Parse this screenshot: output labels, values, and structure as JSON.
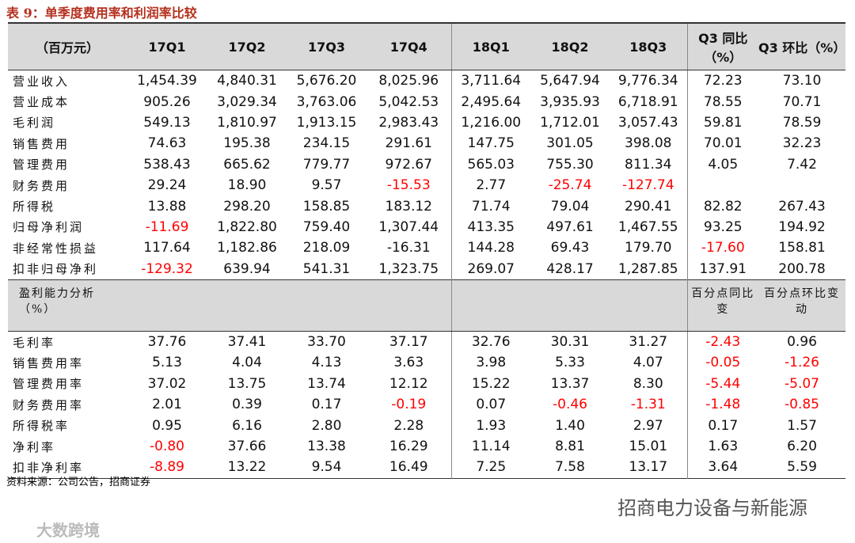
{
  "title": "表 9：单季度费用率和利润率比较",
  "table": {
    "header": [
      "（百万元）",
      "17Q1",
      "17Q2",
      "17Q3",
      "17Q4",
      "18Q1",
      "18Q2",
      "18Q3",
      "Q3 同比（%）",
      "Q3 环比（%）"
    ],
    "rows": [
      {
        "label": "营业收入",
        "cells": [
          "1,454.39",
          "4,840.31",
          "5,676.20",
          "8,025.96",
          "3,711.64",
          "5,647.94",
          "9,776.34",
          "72.23",
          "73.10"
        ]
      },
      {
        "label": "营业成本",
        "cells": [
          "905.26",
          "3,029.34",
          "3,763.06",
          "5,042.53",
          "2,495.64",
          "3,935.93",
          "6,718.91",
          "78.55",
          "70.71"
        ]
      },
      {
        "label": "毛利润",
        "cells": [
          "549.13",
          "1,810.97",
          "1,913.15",
          "2,983.43",
          "1,216.00",
          "1,712.01",
          "3,057.43",
          "59.81",
          "78.59"
        ]
      },
      {
        "label": "销售费用",
        "cells": [
          "74.63",
          "195.38",
          "234.15",
          "291.61",
          "147.75",
          "301.05",
          "398.08",
          "70.01",
          "32.23"
        ]
      },
      {
        "label": "管理费用",
        "cells": [
          "538.43",
          "665.62",
          "779.77",
          "972.67",
          "565.03",
          "755.30",
          "811.34",
          "4.05",
          "7.42"
        ]
      },
      {
        "label": "财务费用",
        "cells": [
          "29.24",
          "18.90",
          "9.57",
          {
            "text": "-15.53",
            "color": "#ff0000"
          },
          "2.77",
          {
            "text": "-25.74",
            "color": "#ff0000"
          },
          {
            "text": "-127.74",
            "color": "#ff0000"
          },
          null,
          null
        ]
      },
      {
        "label": "所得税",
        "cells": [
          "13.88",
          "298.20",
          "158.85",
          "183.12",
          "71.74",
          "79.04",
          "290.41",
          "82.82",
          "267.43"
        ]
      },
      {
        "label": "归母净利润",
        "cells": [
          {
            "text": "-11.69",
            "color": "#ff0000"
          },
          "1,822.80",
          "759.40",
          "1,307.44",
          "413.35",
          "497.61",
          "1,467.55",
          "93.25",
          "194.92"
        ]
      },
      {
        "label": "非经常性损益",
        "cells": [
          "117.64",
          "1,182.86",
          "218.09",
          "-16.31",
          "144.28",
          "69.43",
          "179.70",
          {
            "text": "-17.60",
            "color": "#ff0000"
          },
          "158.81"
        ]
      },
      {
        "label": "扣非归母净利",
        "cells": [
          {
            "text": "-129.32",
            "color": "#ff0000"
          },
          "639.94",
          "541.31",
          "1,323.75",
          "269.07",
          "428.17",
          "1,287.85",
          "137.91",
          "200.78"
        ]
      }
    ],
    "section": {
      "label": "盈利能力分析（%）",
      "yoy": "百分点同比变",
      "qoq": "百分点环比变动"
    },
    "rows2": [
      {
        "label": "毛利率",
        "cells": [
          "37.76",
          "37.41",
          "33.70",
          "37.17",
          "32.76",
          "30.31",
          "31.27",
          {
            "text": "-2.43",
            "color": "#ff0000"
          },
          "0.96"
        ]
      },
      {
        "label": "销售费用率",
        "cells": [
          "5.13",
          "4.04",
          "4.13",
          "3.63",
          "3.98",
          "5.33",
          "4.07",
          {
            "text": "-0.05",
            "color": "#ff0000"
          },
          {
            "text": "-1.26",
            "color": "#ff0000"
          }
        ]
      },
      {
        "label": "管理费用率",
        "cells": [
          "37.02",
          "13.75",
          "13.74",
          "12.12",
          "15.22",
          "13.37",
          "8.30",
          {
            "text": "-5.44",
            "color": "#ff0000"
          },
          {
            "text": "-5.07",
            "color": "#ff0000"
          }
        ]
      },
      {
        "label": "财务费用率",
        "cells": [
          "2.01",
          "0.39",
          "0.17",
          {
            "text": "-0.19",
            "color": "#ff0000"
          },
          "0.07",
          {
            "text": "-0.46",
            "color": "#ff0000"
          },
          {
            "text": "-1.31",
            "color": "#ff0000"
          },
          {
            "text": "-1.48",
            "color": "#ff0000"
          },
          {
            "text": "-0.85",
            "color": "#ff0000"
          }
        ]
      },
      {
        "label": "所得税率",
        "cells": [
          "0.95",
          "6.16",
          "2.80",
          "2.28",
          "1.93",
          "1.40",
          "2.97",
          "0.17",
          "1.57"
        ]
      },
      {
        "label": "净利率",
        "cells": [
          {
            "text": "-0.80",
            "color": "#ff0000"
          },
          "37.66",
          "13.38",
          "16.29",
          "11.14",
          "8.81",
          "15.01",
          "1.63",
          "6.20"
        ]
      },
      {
        "label": "扣非净利率",
        "cells": [
          {
            "text": "-8.89",
            "color": "#ff0000"
          },
          "13.22",
          "9.54",
          "16.49",
          "7.25",
          "7.58",
          "13.17",
          "3.64",
          "5.59"
        ]
      }
    ]
  },
  "source": "资料来源：公司公告，招商证券",
  "watermark": "招商电力设备与新能源",
  "logo": "大数跨境"
}
